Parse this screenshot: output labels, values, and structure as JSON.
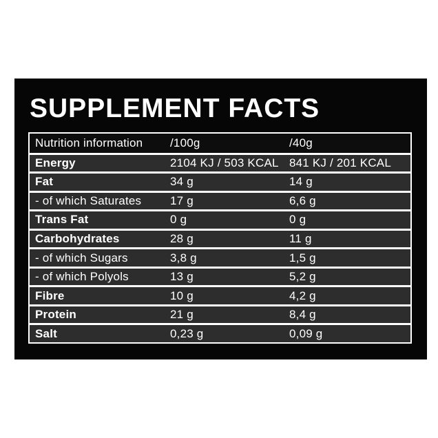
{
  "colors": {
    "page_background": "#ffffff",
    "card_background": "#060606",
    "table_border": "#ffffff",
    "header_row_background": "#0d0d0d",
    "data_row_background": "#2d2d2d",
    "text": "#ffffff"
  },
  "card": {
    "title": "SUPPLEMENT FACTS"
  },
  "table": {
    "header": {
      "label": "Nutrition information",
      "per100g": "/100g",
      "per40g": "/40g"
    },
    "rows": [
      {
        "label": "Energy",
        "per100g": "2104 KJ / 503 KCAL",
        "per40g": "841 KJ / 201 KCAL"
      },
      {
        "label": "Fat",
        "per100g": "34 g",
        "per40g": "14 g"
      },
      {
        "label": "- of which Saturates",
        "per100g": "17 g",
        "per40g": "6,6 g"
      },
      {
        "label": "Trans Fat",
        "per100g": "0 g",
        "per40g": "0 g"
      },
      {
        "label": "Carbohydrates",
        "per100g": "28 g",
        "per40g": "11 g"
      },
      {
        "label": "- of which Sugars",
        "per100g": "3,8 g",
        "per40g": "1,5 g"
      },
      {
        "label": "- of which Polyols",
        "per100g": "13 g",
        "per40g": "5,2 g"
      },
      {
        "label": "Fibre",
        "per100g": "10 g",
        "per40g": "4,2 g"
      },
      {
        "label": "Protein",
        "per100g": "21 g",
        "per40g": "8,4 g"
      },
      {
        "label": "Salt",
        "per100g": "0,23 g",
        "per40g": "0,09 g"
      }
    ]
  }
}
